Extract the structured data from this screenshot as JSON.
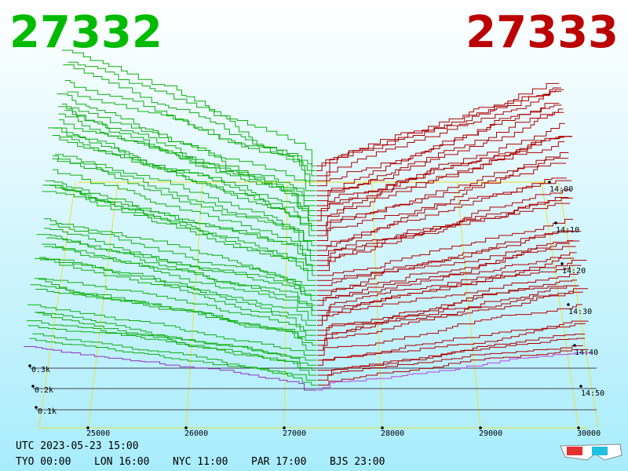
{
  "header": {
    "bid": "27332",
    "ask": "27333"
  },
  "price_axis": {
    "ticks": [
      "25000",
      "26000",
      "27000",
      "28000",
      "29000",
      "30000"
    ]
  },
  "volume_axis": {
    "ticks": [
      "0.1k",
      "0.2k",
      "0.3k"
    ]
  },
  "time_axis": {
    "ticks": [
      "14:00",
      "14:10",
      "14:20",
      "14:30",
      "14:40",
      "14:50"
    ]
  },
  "footer": {
    "utc": "UTC 2023-05-23 15:00",
    "clocks": [
      "TYO 00:00",
      "LON 16:00",
      "NYC 11:00",
      "PAR 17:00",
      "BJS 23:00"
    ]
  }
}
